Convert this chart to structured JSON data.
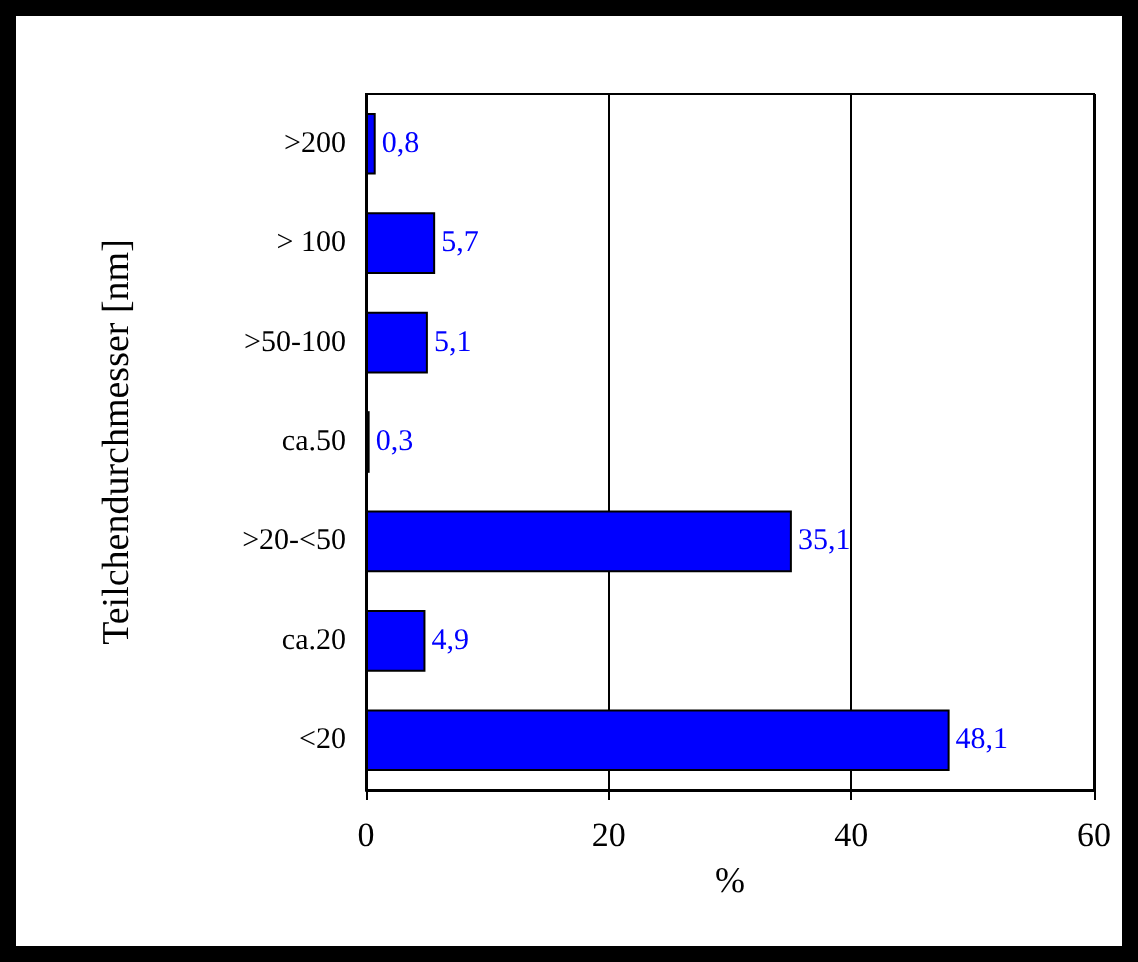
{
  "chart_data": {
    "type": "bar",
    "orientation": "horizontal",
    "ylabel": "Teilchendurchmesser [nm]",
    "xlabel": "%",
    "categories": [
      ">200",
      "> 100",
      ">50-100",
      "ca.50",
      ">20-<50",
      "ca.20",
      "<20"
    ],
    "values": [
      0.8,
      5.7,
      5.1,
      0.3,
      35.1,
      4.9,
      48.1
    ],
    "value_labels": [
      "0,8",
      "5,7",
      "5,1",
      "0,3",
      "35,1",
      "4,9",
      "48,1"
    ],
    "color": "#0000ff",
    "xlim": [
      0,
      60
    ],
    "xticks": [
      0,
      20,
      40,
      60
    ],
    "grid": "x"
  }
}
